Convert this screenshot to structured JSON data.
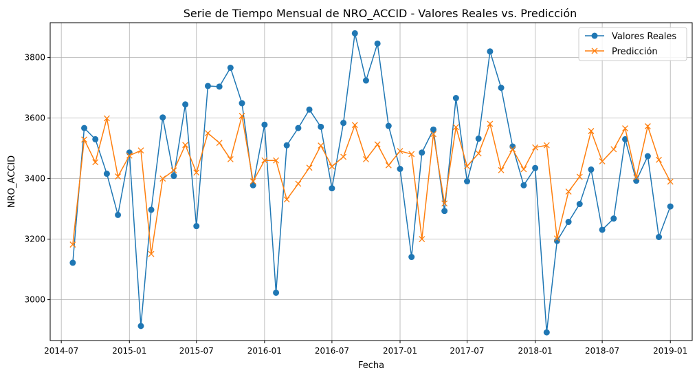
{
  "chart_data": {
    "type": "line",
    "title": "Serie de Tiempo Mensual de NRO_ACCID - Valores Reales vs. Predicción",
    "xlabel": "Fecha",
    "ylabel": "NRO_ACCID",
    "x": [
      "2014-08",
      "2014-09",
      "2014-10",
      "2014-11",
      "2014-12",
      "2015-01",
      "2015-02",
      "2015-03",
      "2015-04",
      "2015-05",
      "2015-06",
      "2015-07",
      "2015-08",
      "2015-09",
      "2015-10",
      "2015-11",
      "2015-12",
      "2016-01",
      "2016-02",
      "2016-03",
      "2016-04",
      "2016-05",
      "2016-06",
      "2016-07",
      "2016-08",
      "2016-09",
      "2016-10",
      "2016-11",
      "2016-12",
      "2017-01",
      "2017-02",
      "2017-03",
      "2017-04",
      "2017-05",
      "2017-06",
      "2017-07",
      "2017-08",
      "2017-09",
      "2017-10",
      "2017-11",
      "2017-12",
      "2018-01",
      "2018-02",
      "2018-03",
      "2018-04",
      "2018-05",
      "2018-06",
      "2018-07",
      "2018-08",
      "2018-09",
      "2018-10",
      "2018-11",
      "2018-12",
      "2019-01"
    ],
    "x_ticks": [
      "2014-07",
      "2015-01",
      "2015-07",
      "2016-01",
      "2016-07",
      "2017-01",
      "2017-07",
      "2018-01",
      "2018-07",
      "2019-01"
    ],
    "y_ticks": [
      3000,
      3200,
      3400,
      3600,
      3800
    ],
    "ylim": [
      2865,
      3915
    ],
    "xlim": [
      "2014-06-01",
      "2019-03-01"
    ],
    "grid": true,
    "legend_position": "top-right",
    "series": [
      {
        "name": "Valores Reales",
        "color": "#1f77b4",
        "marker": "circle",
        "values": [
          3122,
          3567,
          3530,
          3416,
          3280,
          3486,
          2913,
          3297,
          3602,
          3409,
          3645,
          3243,
          3706,
          3704,
          3766,
          3649,
          3378,
          3578,
          3023,
          3510,
          3567,
          3628,
          3571,
          3368,
          3584,
          3880,
          3724,
          3846,
          3574,
          3432,
          3141,
          3486,
          3562,
          3293,
          3666,
          3391,
          3532,
          3820,
          3700,
          3506,
          3378,
          3435,
          2892,
          3194,
          3257,
          3316,
          3430,
          3231,
          3268,
          3530,
          3393,
          3474,
          3207,
          3308
        ]
      },
      {
        "name": "Predicción",
        "color": "#ff7f0e",
        "marker": "x",
        "values": [
          3182,
          3529,
          3454,
          3599,
          3407,
          3476,
          3493,
          3151,
          3400,
          3427,
          3511,
          3420,
          3550,
          3518,
          3464,
          3607,
          3391,
          3460,
          3460,
          3331,
          3383,
          3436,
          3509,
          3440,
          3472,
          3577,
          3464,
          3513,
          3444,
          3491,
          3481,
          3200,
          3547,
          3318,
          3570,
          3441,
          3483,
          3581,
          3428,
          3497,
          3431,
          3503,
          3510,
          3202,
          3357,
          3406,
          3557,
          3457,
          3497,
          3566,
          3404,
          3573,
          3462,
          3390
        ]
      }
    ]
  }
}
